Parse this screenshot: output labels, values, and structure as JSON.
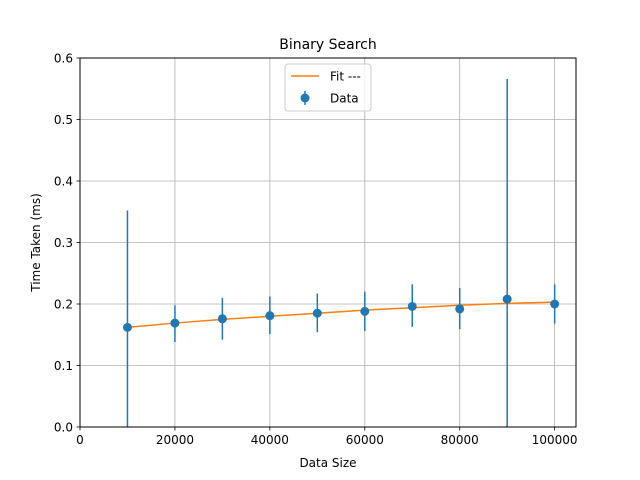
{
  "chart_data": {
    "type": "scatter",
    "title": "Binary Search",
    "xlabel": "Data Size",
    "ylabel": "Time Taken (ms)",
    "xlim": [
      0,
      104500
    ],
    "ylim": [
      0,
      0.6
    ],
    "xticks": [
      0,
      20000,
      40000,
      60000,
      80000,
      100000
    ],
    "xtick_labels": [
      "0",
      "20000",
      "40000",
      "60000",
      "80000",
      "100000"
    ],
    "yticks": [
      0.0,
      0.1,
      0.2,
      0.3,
      0.4,
      0.5,
      0.6
    ],
    "ytick_labels": [
      "0.0",
      "0.1",
      "0.2",
      "0.3",
      "0.4",
      "0.5",
      "0.6"
    ],
    "grid": true,
    "legend_position": "top-center",
    "series": [
      {
        "name": "Fit ---",
        "kind": "line",
        "color": "#ff7f0e",
        "x": [
          10000,
          20000,
          30000,
          40000,
          50000,
          60000,
          70000,
          80000,
          90000,
          100000
        ],
        "y": [
          0.162,
          0.169,
          0.175,
          0.18,
          0.185,
          0.19,
          0.194,
          0.198,
          0.201,
          0.203
        ]
      },
      {
        "name": "Data",
        "kind": "errorbar",
        "color": "#1f77b4",
        "x": [
          10000,
          20000,
          30000,
          40000,
          50000,
          60000,
          70000,
          80000,
          90000,
          100000
        ],
        "y": [
          0.162,
          0.169,
          0.176,
          0.181,
          0.185,
          0.188,
          0.196,
          0.192,
          0.208,
          0.2
        ],
        "yerr_low": [
          0.162,
          0.031,
          0.034,
          0.03,
          0.031,
          0.032,
          0.033,
          0.033,
          0.208,
          0.032
        ],
        "yerr_high": [
          0.19,
          0.029,
          0.034,
          0.031,
          0.032,
          0.032,
          0.036,
          0.034,
          0.358,
          0.032
        ]
      }
    ]
  }
}
